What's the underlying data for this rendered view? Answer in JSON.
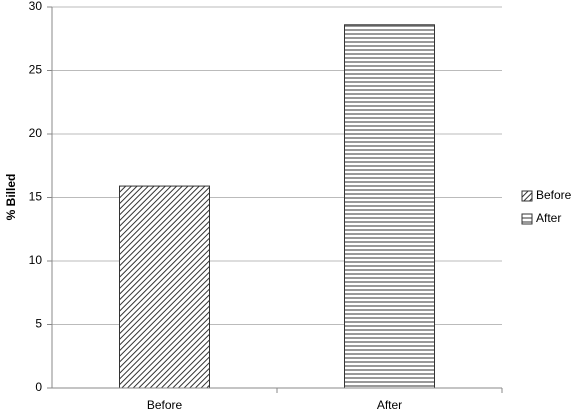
{
  "chart_data": {
    "type": "bar",
    "y_label": "% Billed",
    "categories": [
      "Before",
      "After"
    ],
    "series": [
      {
        "name": "Before",
        "color": "#333333",
        "pattern": "diagonal",
        "values": [
          15.9,
          null
        ]
      },
      {
        "name": "After",
        "color": "#333333",
        "pattern": "horizontal",
        "values": [
          null,
          28.6
        ]
      }
    ],
    "ylim": [
      0,
      30
    ],
    "yticks": [
      0,
      5,
      10,
      15,
      20,
      25,
      30
    ],
    "grid": true,
    "legend": "right"
  }
}
